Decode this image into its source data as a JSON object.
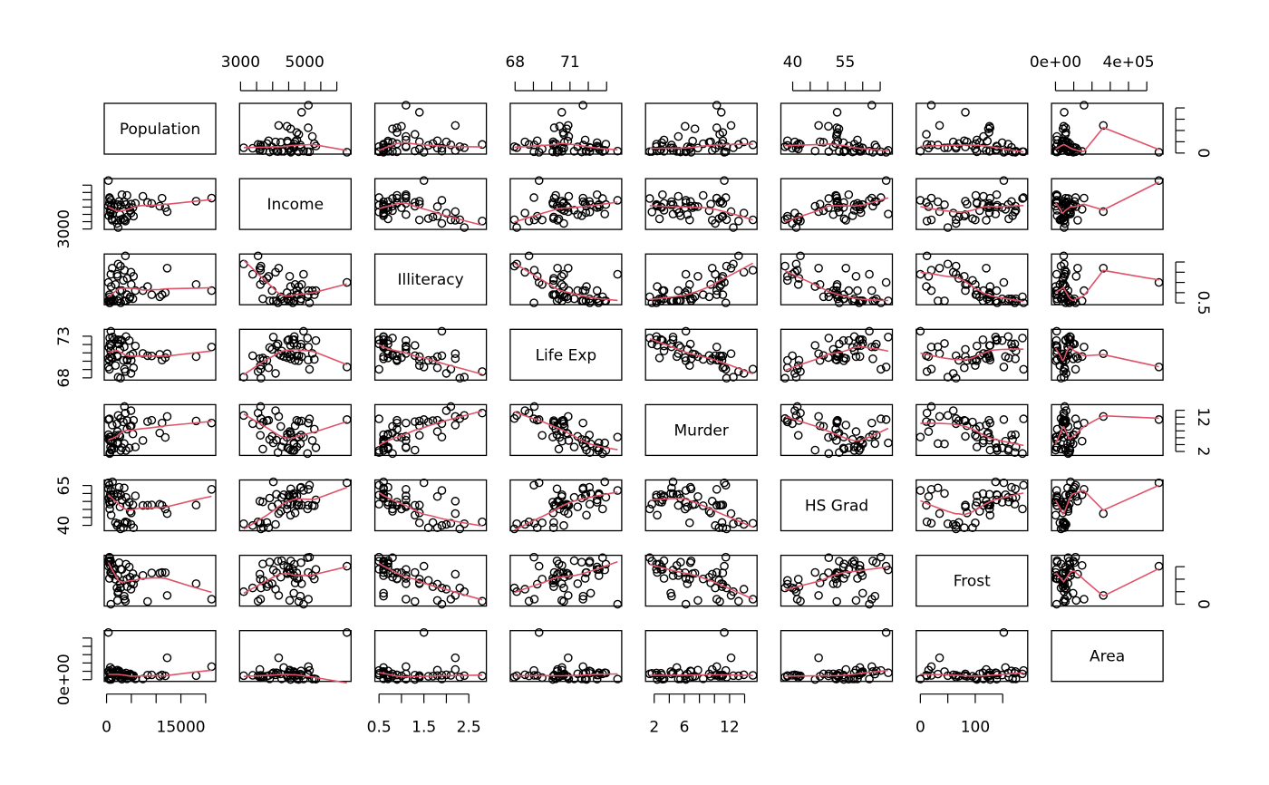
{
  "chart_data": {
    "type": "scatter",
    "subtype": "scatterplot-matrix",
    "smoother": "lowess",
    "colors": {
      "points": "#000000",
      "smoother": "#df536b",
      "frame": "#000000"
    },
    "variables": [
      "Population",
      "Income",
      "Illiteracy",
      "Life Exp",
      "Murder",
      "HS Grad",
      "Frost",
      "Area"
    ],
    "ranges": {
      "Population": [
        365,
        21198
      ],
      "Income": [
        3098,
        6315
      ],
      "Illiteracy": [
        0.5,
        2.8
      ],
      "Life Exp": [
        67.96,
        73.6
      ],
      "Murder": [
        1.4,
        15.1
      ],
      "HS Grad": [
        37.8,
        67.3
      ],
      "Frost": [
        0,
        188
      ],
      "Area": [
        1049,
        566432
      ]
    },
    "axis_ticks": {
      "top": [
        {
          "var": "Income",
          "labels": [
            "3000",
            "5000"
          ],
          "values": [
            3000,
            5000
          ],
          "minor": [
            3500,
            4000,
            4500,
            5500,
            6000
          ]
        },
        {
          "var": "Life Exp",
          "labels": [
            "68",
            "71"
          ],
          "values": [
            68,
            71
          ],
          "minor": [
            69,
            70,
            72,
            73
          ]
        },
        {
          "var": "HS Grad",
          "labels": [
            "40",
            "55"
          ],
          "values": [
            40,
            55
          ],
          "minor": [
            45,
            50,
            60,
            65
          ]
        },
        {
          "var": "Area",
          "labels": [
            "0e+00",
            "4e+05"
          ],
          "values": [
            0,
            400000
          ],
          "minor": [
            100000,
            200000,
            300000,
            500000
          ]
        }
      ],
      "bottom": [
        {
          "var": "Population",
          "labels": [
            "0",
            "15000"
          ],
          "values": [
            0,
            15000
          ],
          "minor": [
            5000,
            10000,
            20000
          ]
        },
        {
          "var": "Illiteracy",
          "labels": [
            "0.5",
            "1.5",
            "2.5"
          ],
          "values": [
            0.5,
            1.5,
            2.5
          ],
          "minor": [
            1.0,
            2.0
          ]
        },
        {
          "var": "Murder",
          "labels": [
            "2",
            "6",
            "12"
          ],
          "values": [
            2,
            6,
            12
          ],
          "minor": [
            4,
            8,
            10,
            14
          ]
        },
        {
          "var": "Frost",
          "labels": [
            "0",
            "100"
          ],
          "values": [
            0,
            100
          ],
          "minor": [
            50,
            150
          ]
        }
      ],
      "left": [
        {
          "var": "Income",
          "labels": [
            "3000"
          ],
          "values": [
            3000
          ],
          "minor": [
            3500,
            4000,
            4500,
            5000,
            5500,
            6000
          ]
        },
        {
          "var": "Life Exp",
          "labels": [
            "68",
            "73"
          ],
          "values": [
            68,
            73
          ],
          "minor": [
            69,
            70,
            71,
            72
          ]
        },
        {
          "var": "HS Grad",
          "labels": [
            "40",
            "65"
          ],
          "values": [
            40,
            65
          ],
          "minor": [
            45,
            50,
            55,
            60
          ]
        },
        {
          "var": "Area",
          "labels": [
            "0e+00"
          ],
          "values": [
            0
          ],
          "minor": [
            100000,
            200000,
            300000,
            400000,
            500000
          ]
        }
      ],
      "right": [
        {
          "var": "Population",
          "labels": [
            "0"
          ],
          "values": [
            0
          ],
          "minor": [
            5000,
            10000,
            15000,
            20000
          ]
        },
        {
          "var": "Illiteracy",
          "labels": [
            "0.5"
          ],
          "values": [
            0.5
          ],
          "minor": [
            1.0,
            1.5,
            2.0,
            2.5
          ]
        },
        {
          "var": "Murder",
          "labels": [
            "2",
            "12"
          ],
          "values": [
            2,
            12
          ],
          "minor": [
            4,
            6,
            8,
            10,
            14
          ]
        },
        {
          "var": "Frost",
          "labels": [
            "0"
          ],
          "values": [
            0
          ],
          "minor": [
            50,
            100,
            150
          ]
        }
      ]
    },
    "data": {
      "Population": [
        3615,
        365,
        2212,
        2110,
        21198,
        2541,
        3100,
        579,
        8277,
        4931,
        868,
        813,
        11197,
        5313,
        2861,
        2280,
        3387,
        3806,
        1058,
        4122,
        5814,
        9111,
        3921,
        2341,
        4767,
        746,
        1544,
        590,
        812,
        7333,
        1144,
        18076,
        5441,
        637,
        10735,
        2715,
        2284,
        11860,
        931,
        2816,
        681,
        4173,
        12237,
        1203,
        472,
        4981,
        3559,
        1799,
        4589,
        376
      ],
      "Income": [
        3624,
        6315,
        4530,
        3378,
        5114,
        4884,
        5348,
        4809,
        4815,
        4091,
        4963,
        4119,
        5107,
        4458,
        4628,
        4669,
        3712,
        3545,
        3694,
        5299,
        4755,
        4751,
        4675,
        3098,
        4254,
        4347,
        4508,
        5149,
        4281,
        5237,
        3601,
        4903,
        3875,
        5087,
        4561,
        3983,
        4660,
        4449,
        4558,
        3635,
        4167,
        3821,
        4188,
        4022,
        3907,
        4701,
        4864,
        3617,
        4468,
        4566
      ],
      "Illiteracy": [
        2.1,
        1.5,
        1.8,
        1.9,
        1.1,
        0.7,
        1.1,
        0.9,
        1.3,
        2.0,
        1.9,
        0.6,
        0.9,
        0.7,
        0.5,
        0.6,
        1.6,
        2.8,
        0.7,
        0.9,
        1.1,
        0.9,
        0.6,
        2.4,
        0.8,
        0.6,
        0.6,
        0.5,
        0.7,
        1.1,
        2.2,
        1.4,
        1.8,
        0.8,
        0.8,
        1.1,
        0.6,
        1.0,
        1.3,
        2.3,
        0.5,
        1.7,
        2.2,
        0.6,
        0.6,
        1.4,
        0.6,
        1.4,
        0.7,
        0.6
      ],
      "Life Exp": [
        69.05,
        69.31,
        70.55,
        70.66,
        71.71,
        72.06,
        72.48,
        70.06,
        70.66,
        68.54,
        73.6,
        71.87,
        70.14,
        70.88,
        72.56,
        72.58,
        70.1,
        68.76,
        70.39,
        70.22,
        71.83,
        70.63,
        72.96,
        68.09,
        70.69,
        70.56,
        72.6,
        69.03,
        71.23,
        70.93,
        70.32,
        70.55,
        69.21,
        72.78,
        70.82,
        71.42,
        72.13,
        70.43,
        71.9,
        67.96,
        72.08,
        70.11,
        70.9,
        72.9,
        71.64,
        70.08,
        71.72,
        69.48,
        72.48,
        70.29
      ],
      "Murder": [
        15.1,
        11.3,
        7.8,
        10.1,
        10.3,
        6.8,
        3.1,
        6.2,
        10.7,
        13.9,
        6.2,
        5.3,
        10.3,
        7.1,
        2.3,
        4.5,
        10.6,
        13.2,
        2.7,
        8.5,
        3.3,
        11.1,
        2.3,
        12.5,
        9.3,
        5.0,
        2.9,
        11.5,
        3.3,
        5.2,
        9.7,
        10.9,
        11.1,
        1.4,
        7.4,
        6.4,
        4.2,
        6.1,
        2.4,
        11.6,
        1.7,
        11.0,
        12.2,
        4.5,
        5.5,
        9.5,
        4.3,
        6.7,
        3.0,
        6.9
      ],
      "HS Grad": [
        41.3,
        66.7,
        58.1,
        39.9,
        62.6,
        63.9,
        56.0,
        54.6,
        52.6,
        40.6,
        61.9,
        59.5,
        52.6,
        52.9,
        59.0,
        59.9,
        38.5,
        42.2,
        54.7,
        52.3,
        58.5,
        52.8,
        57.6,
        41.0,
        48.8,
        59.2,
        59.3,
        65.2,
        57.6,
        52.5,
        55.2,
        52.7,
        38.5,
        50.3,
        53.2,
        51.6,
        60.0,
        50.2,
        46.4,
        37.8,
        53.3,
        41.8,
        47.4,
        67.3,
        57.1,
        47.8,
        63.5,
        41.6,
        54.5,
        62.9
      ],
      "Frost": [
        20,
        152,
        15,
        65,
        20,
        166,
        139,
        103,
        11,
        60,
        0,
        126,
        127,
        122,
        140,
        114,
        95,
        12,
        161,
        101,
        103,
        125,
        160,
        50,
        108,
        155,
        139,
        188,
        174,
        115,
        120,
        82,
        80,
        186,
        124,
        82,
        44,
        126,
        127,
        65,
        172,
        70,
        35,
        137,
        168,
        85,
        32,
        100,
        149,
        173
      ],
      "Area": [
        50708,
        566432,
        113417,
        51945,
        156361,
        103766,
        4862,
        1982,
        54090,
        58073,
        6425,
        82677,
        55748,
        36097,
        55941,
        81787,
        39650,
        44930,
        30920,
        9891,
        7826,
        56817,
        79289,
        47296,
        68995,
        145587,
        76483,
        109889,
        9027,
        7521,
        121412,
        47831,
        48798,
        69273,
        40975,
        68782,
        96184,
        44966,
        1049,
        30225,
        75955,
        41328,
        262134,
        82096,
        9267,
        39780,
        66570,
        24070,
        54464,
        97203
      ]
    }
  }
}
